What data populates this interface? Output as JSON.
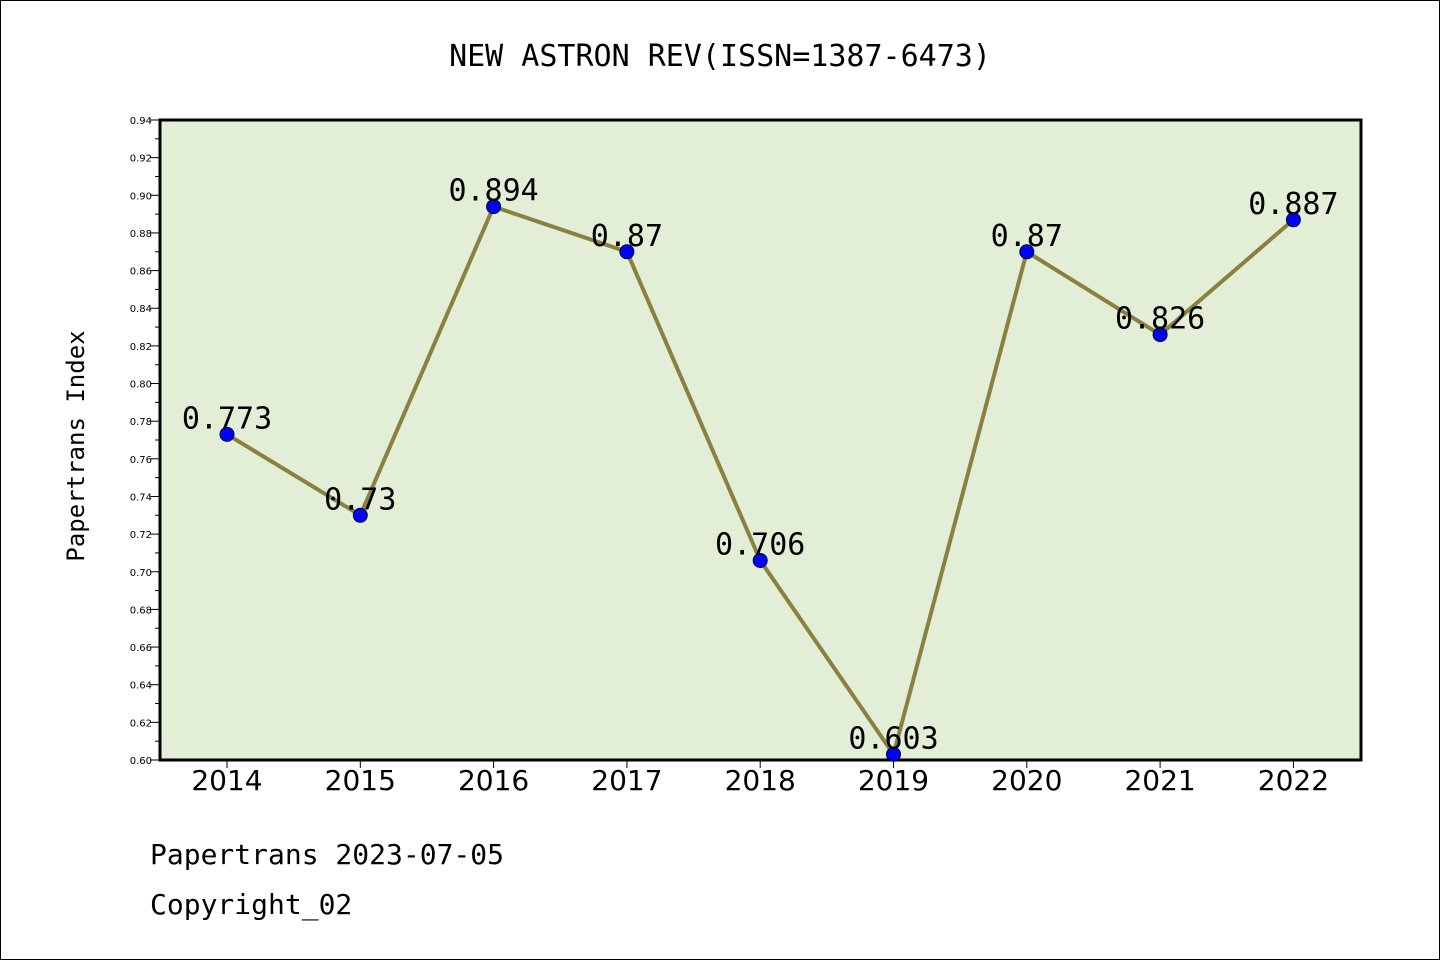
{
  "chart_data": {
    "type": "line",
    "title": "NEW ASTRON REV(ISSN=1387-6473)",
    "xlabel": "",
    "ylabel": "Papertrans Index",
    "categories": [
      "2014",
      "2015",
      "2016",
      "2017",
      "2018",
      "2019",
      "2020",
      "2021",
      "2022"
    ],
    "values": [
      0.773,
      0.73,
      0.894,
      0.87,
      0.706,
      0.603,
      0.87,
      0.826,
      0.887
    ],
    "data_labels": [
      "0.773",
      "0.73",
      "0.894",
      "0.87",
      "0.706",
      "0.603",
      "0.87",
      "0.826",
      "0.887"
    ],
    "ylim": [
      0.6,
      0.94
    ],
    "yticks": [
      "0.60",
      "0.62",
      "0.64",
      "0.66",
      "0.68",
      "0.70",
      "0.72",
      "0.74",
      "0.76",
      "0.78",
      "0.80",
      "0.82",
      "0.84",
      "0.86",
      "0.88",
      "0.90",
      "0.92",
      "0.94"
    ],
    "grid": false,
    "legend": "none",
    "colors": {
      "plot_background": "#e2efd6",
      "line": "#8b8040",
      "marker": "#0000ff"
    }
  },
  "footer": {
    "date_line": "Papertrans 2023-07-05",
    "copyright": "Copyright_02"
  }
}
